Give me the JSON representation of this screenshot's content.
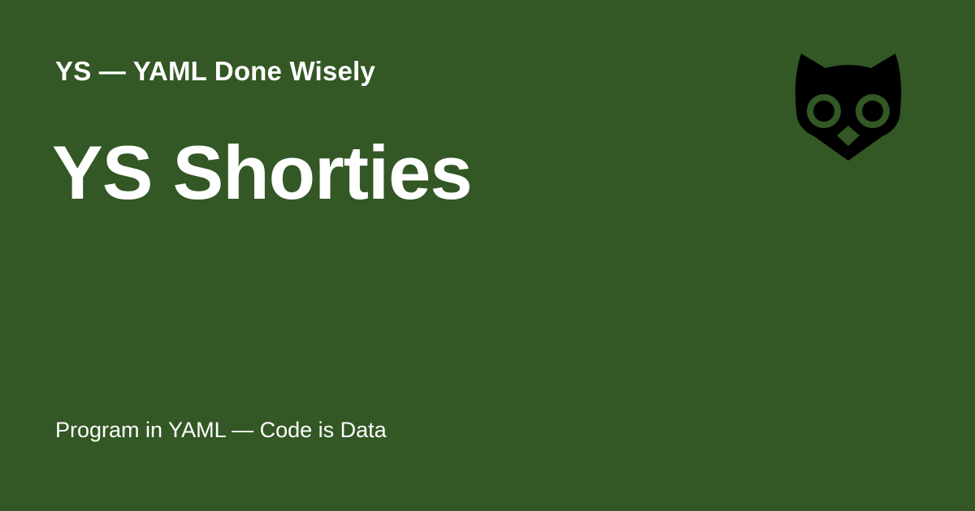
{
  "page": {
    "background_color": "#335725",
    "text_color": "#ffffff"
  },
  "header": {
    "site_name": "YS — YAML Done Wisely"
  },
  "main": {
    "title": "YS Shorties"
  },
  "footer": {
    "tagline": "Program in YAML — Code is Data"
  },
  "logo": {
    "icon": "owl-icon",
    "color": "#000000"
  }
}
